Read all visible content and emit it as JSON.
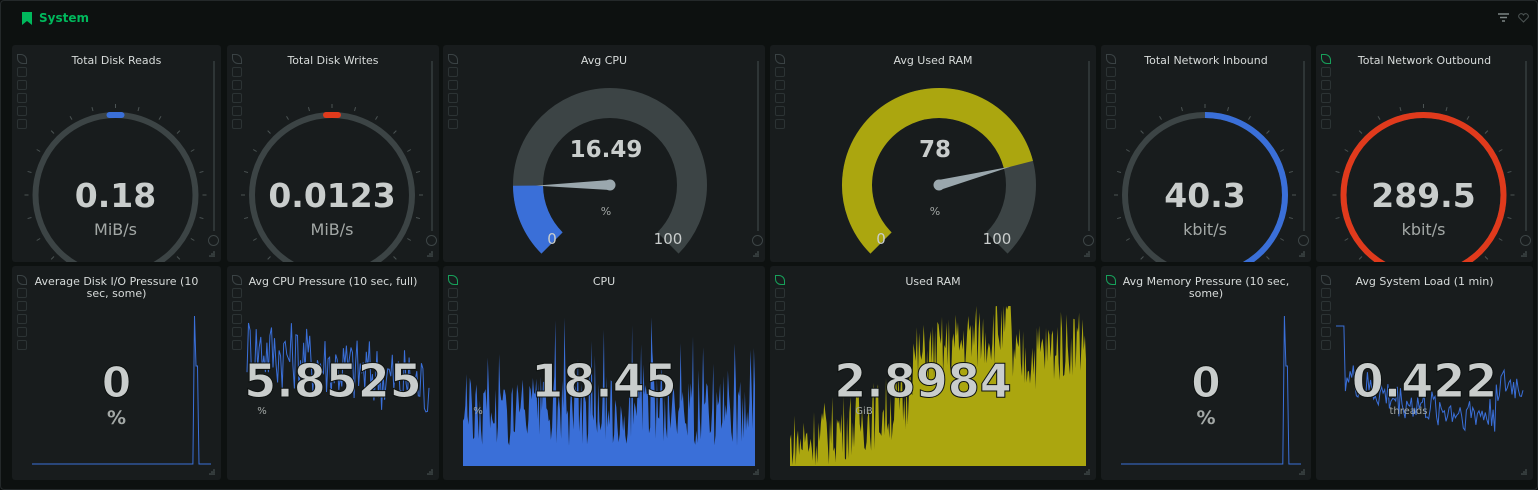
{
  "section": {
    "title": "System"
  },
  "gauges": [
    {
      "title": "Total Disk Reads",
      "value": "0.18",
      "unit": "MiB/s",
      "fill_fraction": 0.0,
      "color": "#3a6fd8",
      "type": "ring",
      "marker_color": "#3a6fd8"
    },
    {
      "title": "Total Disk Writes",
      "value": "0.0123",
      "unit": "MiB/s",
      "fill_fraction": 0.0,
      "color": "#e03a1c",
      "type": "ring",
      "marker_color": "#e03a1c"
    },
    {
      "title": "Avg CPU",
      "value": "16.49",
      "unit": "%",
      "min": "0",
      "max": "100",
      "fill_fraction": 0.1649,
      "color": "#3a6fd8",
      "type": "arc"
    },
    {
      "title": "Avg Used RAM",
      "value": "78",
      "unit": "%",
      "min": "0",
      "max": "100",
      "fill_fraction": 0.78,
      "color": "#aba60f",
      "type": "arc"
    },
    {
      "title": "Total Network Inbound",
      "value": "40.3",
      "unit": "kbit/s",
      "fill_fraction": 0.5,
      "color": "#3a6fd8",
      "type": "ring"
    },
    {
      "title": "Total Network Outbound",
      "value": "289.5",
      "unit": "kbit/s",
      "fill_fraction": 1.0,
      "color": "#e03a1c",
      "type": "ring"
    }
  ],
  "sparks": [
    {
      "title": "Average Disk I/O Pressure (10 sec, some)",
      "value": "0",
      "unit": "%",
      "color": "#3a6fd8",
      "style": "line"
    },
    {
      "title": "Avg CPU Pressure (10 sec, full)",
      "value": "5.8525",
      "unit": "%",
      "color": "#3a6fd8",
      "style": "line"
    },
    {
      "title": "CPU",
      "value": "18.45",
      "unit": "%",
      "color": "#3a6fd8",
      "style": "area"
    },
    {
      "title": "Used RAM",
      "value": "2.8984",
      "unit": "GiB",
      "color": "#aba60f",
      "style": "area"
    },
    {
      "title": "Avg Memory Pressure (10 sec, some)",
      "value": "0",
      "unit": "%",
      "color": "#3a6fd8",
      "style": "line"
    },
    {
      "title": "Avg System Load (1 min)",
      "value": "0.422",
      "unit": "threads",
      "color": "#3a6fd8",
      "style": "line"
    }
  ]
}
